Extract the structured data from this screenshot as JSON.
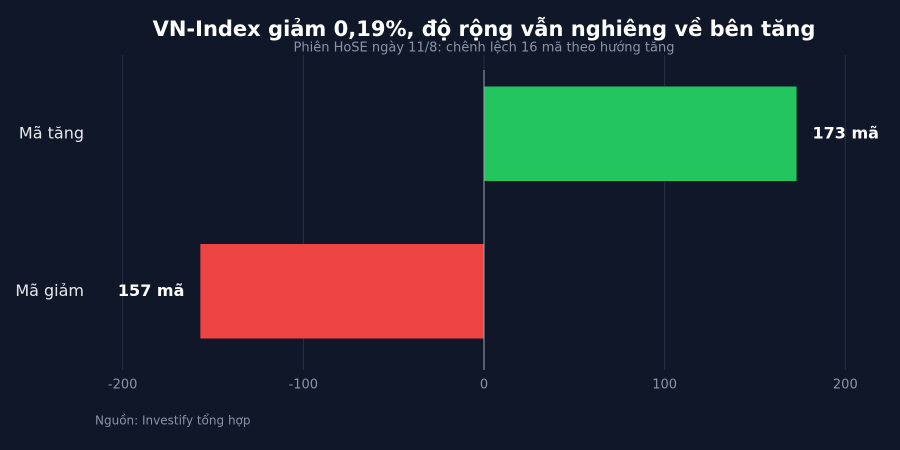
{
  "chart_data": {
    "type": "bar",
    "orientation": "horizontal",
    "title": "VN-Index giảm 0,19%, độ rộng vẫn nghiêng về bên tăng",
    "subtitle": "Phiên HoSE ngày 11/8: chênh lệch 16 mã theo hướng tăng",
    "categories": [
      "Mã tăng",
      "Mã giảm"
    ],
    "values": [
      173,
      -157
    ],
    "value_labels": [
      "173 mã",
      "157 mã"
    ],
    "colors": [
      "#22c55e",
      "#ef4444"
    ],
    "xlim": [
      -212,
      212
    ],
    "xticks": [
      -200,
      -100,
      0,
      100,
      200
    ],
    "grid": true,
    "source": "Nguồn: Investify tổng hợp"
  }
}
